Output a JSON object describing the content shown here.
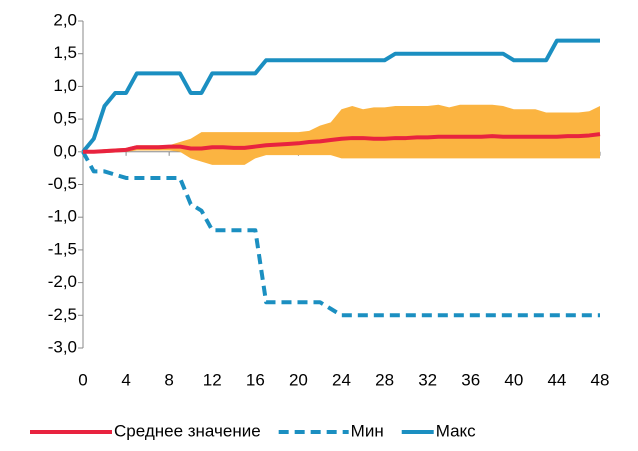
{
  "chart_data": {
    "type": "line",
    "x": [
      0,
      1,
      2,
      3,
      4,
      5,
      6,
      7,
      8,
      9,
      10,
      11,
      12,
      13,
      14,
      15,
      16,
      17,
      18,
      19,
      20,
      21,
      22,
      23,
      24,
      25,
      26,
      27,
      28,
      29,
      30,
      31,
      32,
      33,
      34,
      35,
      36,
      37,
      38,
      39,
      40,
      41,
      42,
      43,
      44,
      45,
      46,
      47,
      48
    ],
    "band": {
      "color": "#fbb441",
      "upper": [
        0,
        0.02,
        0.04,
        0.05,
        0.06,
        0.1,
        0.1,
        0.1,
        0.1,
        0.15,
        0.2,
        0.3,
        0.3,
        0.3,
        0.3,
        0.3,
        0.3,
        0.3,
        0.3,
        0.3,
        0.3,
        0.32,
        0.4,
        0.45,
        0.65,
        0.7,
        0.65,
        0.68,
        0.68,
        0.7,
        0.7,
        0.7,
        0.7,
        0.72,
        0.68,
        0.72,
        0.72,
        0.72,
        0.72,
        0.7,
        0.65,
        0.65,
        0.65,
        0.6,
        0.6,
        0.6,
        0.6,
        0.62,
        0.7
      ],
      "lower": [
        0,
        -0.02,
        -0.02,
        -0.01,
        0,
        0.02,
        0.02,
        0.02,
        0.02,
        0,
        -0.1,
        -0.15,
        -0.2,
        -0.2,
        -0.2,
        -0.2,
        -0.1,
        -0.05,
        -0.05,
        -0.05,
        -0.05,
        -0.05,
        -0.05,
        -0.05,
        -0.1,
        -0.1,
        -0.1,
        -0.1,
        -0.1,
        -0.1,
        -0.1,
        -0.1,
        -0.1,
        -0.1,
        -0.1,
        -0.1,
        -0.1,
        -0.1,
        -0.1,
        -0.1,
        -0.1,
        -0.1,
        -0.1,
        -0.1,
        -0.1,
        -0.1,
        -0.1,
        -0.1,
        -0.1
      ]
    },
    "series": [
      {
        "name": "Среднее значение",
        "color": "#e8233f",
        "dash": false,
        "values": [
          0,
          0,
          0.01,
          0.02,
          0.03,
          0.07,
          0.07,
          0.07,
          0.08,
          0.08,
          0.05,
          0.05,
          0.07,
          0.07,
          0.06,
          0.06,
          0.08,
          0.1,
          0.11,
          0.12,
          0.13,
          0.15,
          0.16,
          0.18,
          0.2,
          0.21,
          0.21,
          0.2,
          0.2,
          0.21,
          0.21,
          0.22,
          0.22,
          0.23,
          0.23,
          0.23,
          0.23,
          0.23,
          0.24,
          0.23,
          0.23,
          0.23,
          0.23,
          0.23,
          0.23,
          0.24,
          0.24,
          0.25,
          0.27
        ]
      },
      {
        "name": "Мин",
        "color": "#1b8fc1",
        "dash": true,
        "values": [
          0,
          -0.3,
          -0.3,
          -0.35,
          -0.4,
          -0.4,
          -0.4,
          -0.4,
          -0.4,
          -0.4,
          -0.8,
          -0.9,
          -1.2,
          -1.2,
          -1.2,
          -1.2,
          -1.2,
          -2.3,
          -2.3,
          -2.3,
          -2.3,
          -2.3,
          -2.3,
          -2.4,
          -2.5,
          -2.5,
          -2.5,
          -2.5,
          -2.5,
          -2.5,
          -2.5,
          -2.5,
          -2.5,
          -2.5,
          -2.5,
          -2.5,
          -2.5,
          -2.5,
          -2.5,
          -2.5,
          -2.5,
          -2.5,
          -2.5,
          -2.5,
          -2.5,
          -2.5,
          -2.5,
          -2.5,
          -2.5
        ]
      },
      {
        "name": "Макс",
        "color": "#1b8fc1",
        "dash": false,
        "values": [
          0,
          0.2,
          0.7,
          0.9,
          0.9,
          1.2,
          1.2,
          1.2,
          1.2,
          1.2,
          0.9,
          0.9,
          1.2,
          1.2,
          1.2,
          1.2,
          1.2,
          1.4,
          1.4,
          1.4,
          1.4,
          1.4,
          1.4,
          1.4,
          1.4,
          1.4,
          1.4,
          1.4,
          1.4,
          1.5,
          1.5,
          1.5,
          1.5,
          1.5,
          1.5,
          1.5,
          1.5,
          1.5,
          1.5,
          1.5,
          1.4,
          1.4,
          1.4,
          1.4,
          1.7,
          1.7,
          1.7,
          1.7,
          1.7
        ]
      }
    ],
    "xlim": [
      0,
      48
    ],
    "xticks": [
      0,
      4,
      8,
      12,
      16,
      20,
      24,
      28,
      32,
      36,
      40,
      44,
      48
    ],
    "ylim": [
      -3,
      2
    ],
    "yticks": [
      {
        "value": -3,
        "label": "-3,0"
      },
      {
        "value": -2.5,
        "label": "-2,5"
      },
      {
        "value": -2,
        "label": "-2,0"
      },
      {
        "value": -1.5,
        "label": "-1,5"
      },
      {
        "value": -1,
        "label": "-1,0"
      },
      {
        "value": -0.5,
        "label": "-0,5"
      },
      {
        "value": 0,
        "label": "0,0"
      },
      {
        "value": 0.5,
        "label": "0,5"
      },
      {
        "value": 1,
        "label": "1,0"
      },
      {
        "value": 1.5,
        "label": "1,5"
      },
      {
        "value": 2,
        "label": "2,0"
      }
    ],
    "legend": "bottom"
  }
}
